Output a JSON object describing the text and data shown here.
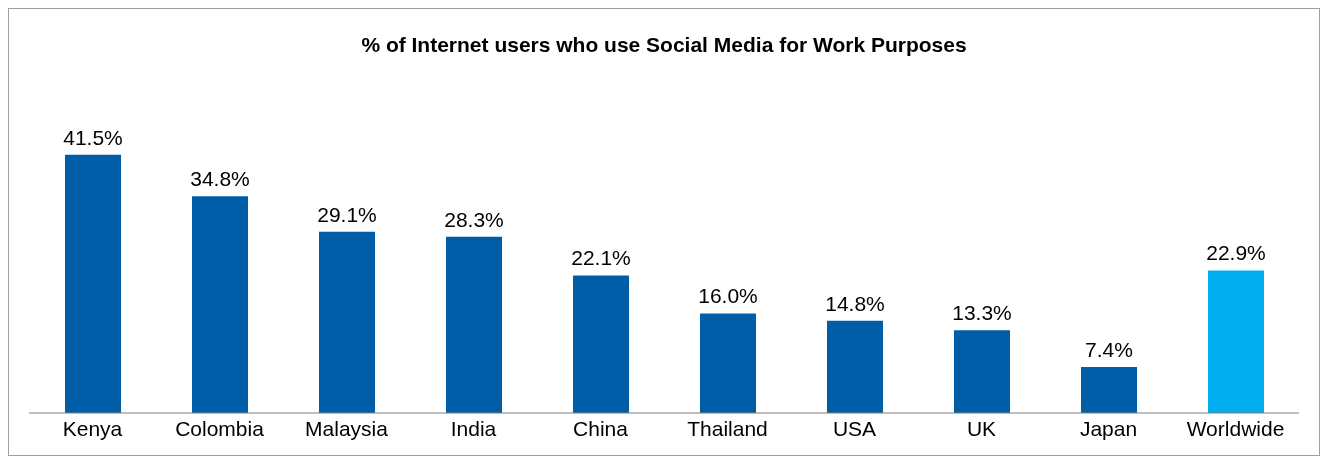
{
  "chart_data": {
    "type": "bar",
    "title": "% of Internet users who use Social Media for Work Purposes",
    "categories": [
      "Kenya",
      "Colombia",
      "Malaysia",
      "India",
      "China",
      "Thailand",
      "USA",
      "UK",
      "Japan",
      "Worldwide"
    ],
    "values": [
      41.5,
      34.8,
      29.1,
      28.3,
      22.1,
      16.0,
      14.8,
      13.3,
      7.4,
      22.9
    ],
    "colors": [
      "#005ea8",
      "#005ea8",
      "#005ea8",
      "#005ea8",
      "#005ea8",
      "#005ea8",
      "#005ea8",
      "#005ea8",
      "#005ea8",
      "#00aeef"
    ],
    "value_labels": [
      "41.5%",
      "34.8%",
      "29.1%",
      "28.3%",
      "22.1%",
      "16.0%",
      "14.8%",
      "13.3%",
      "7.4%",
      "22.9%"
    ],
    "grid": false,
    "legend": false
  }
}
